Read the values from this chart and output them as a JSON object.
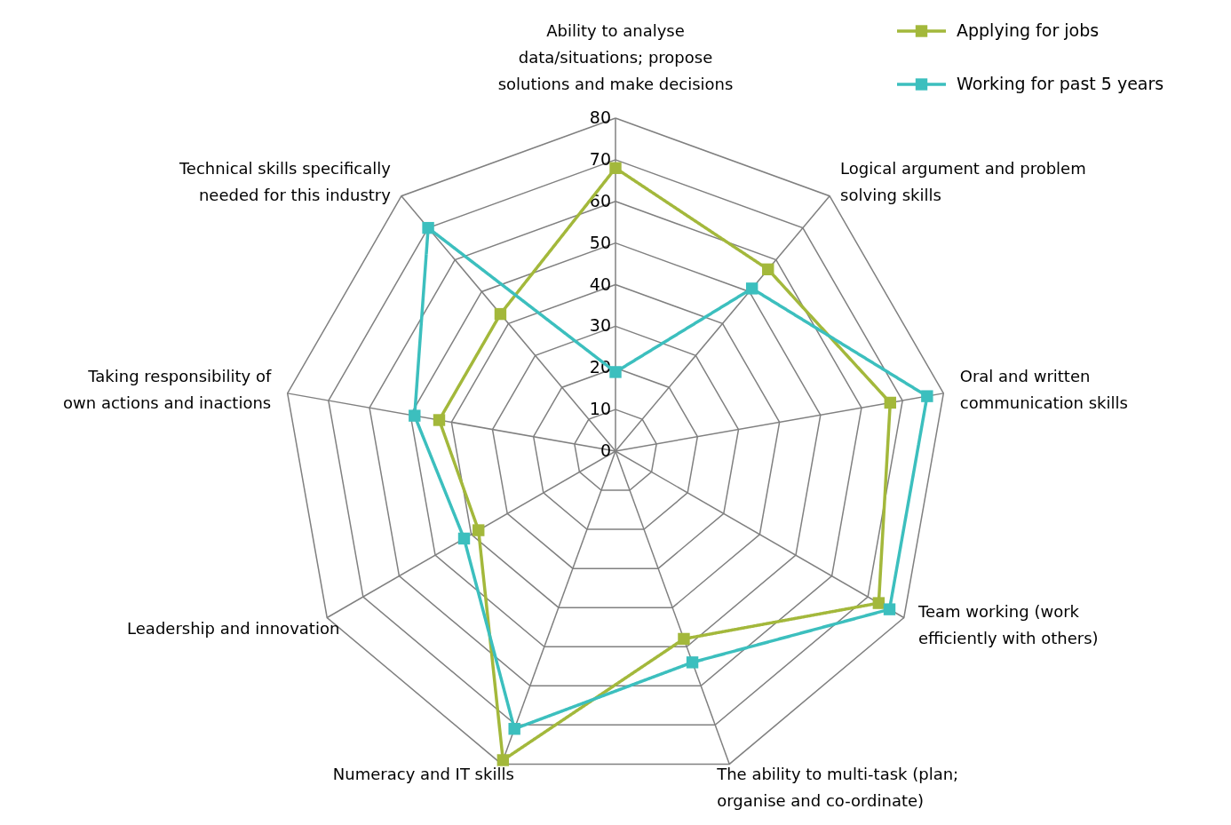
{
  "chart_data": {
    "type": "radar",
    "categories": [
      "Ability to analyse data/situations; propose solutions and make decisions",
      "Logical argument and problem solving skills",
      "Oral and written communication skills",
      "Team working (work efficiently with others)",
      "The ability to multi-task (plan; organise and co-ordinate)",
      "Numeracy and IT skills",
      "Leadership and innovation",
      "Taking responsibility of own actions and inactions",
      "Technical skills specifically needed for this industry"
    ],
    "series": [
      {
        "name": "Applying for jobs",
        "color": "#a3b83b",
        "values": [
          68,
          57,
          67,
          73,
          48,
          79,
          38,
          43,
          43
        ]
      },
      {
        "name": "Working for past 5 years",
        "color": "#3cbfbe",
        "values": [
          19,
          51,
          76,
          76,
          54,
          71,
          42,
          49,
          70
        ]
      }
    ],
    "ylim": [
      0,
      80
    ],
    "yticks": [
      0,
      10,
      20,
      30,
      40,
      50,
      60,
      70,
      80
    ],
    "grid": true,
    "legend": "top right",
    "marker": "square",
    "line_style": "solid"
  }
}
